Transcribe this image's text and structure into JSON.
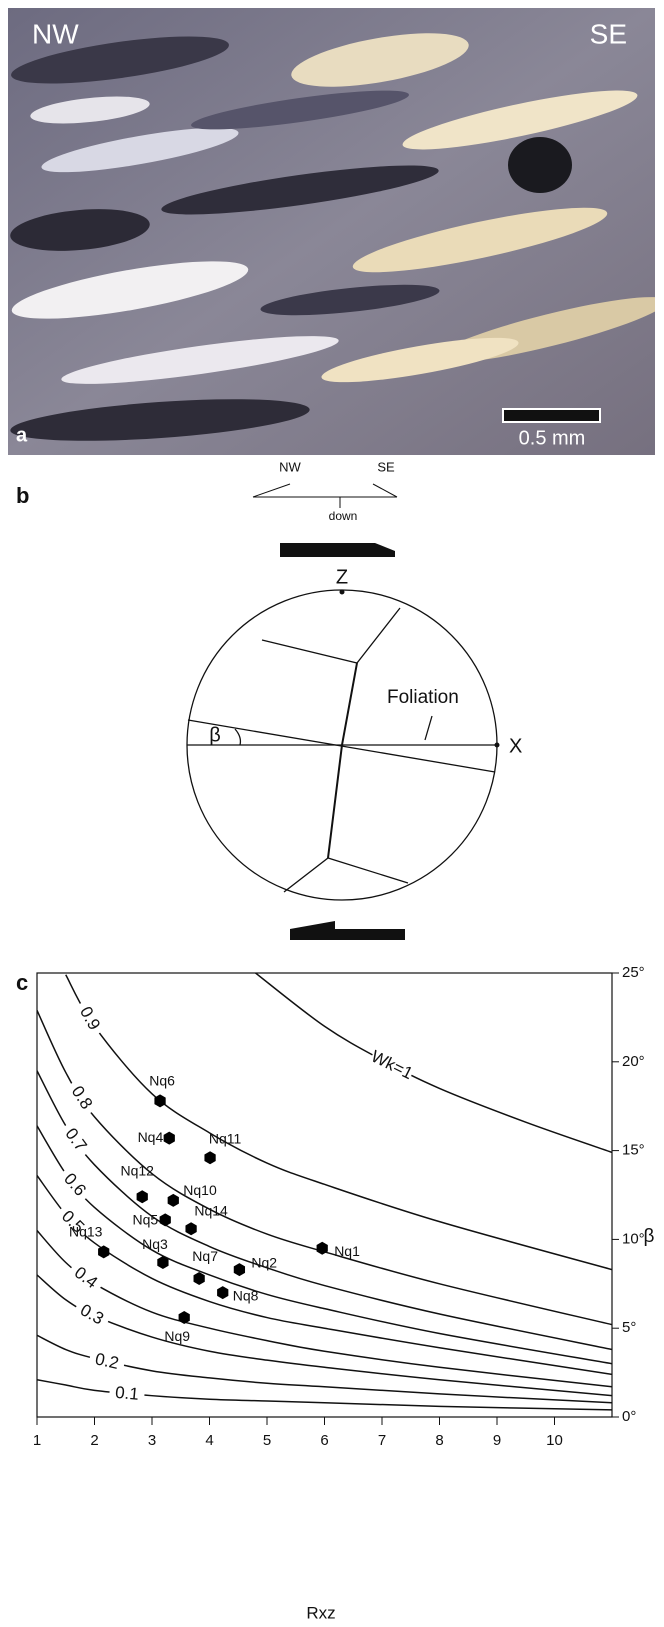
{
  "panel_a": {
    "label": "a",
    "left": "NW",
    "right": "SE",
    "scale_bar": "0.5 mm"
  },
  "panel_b": {
    "label": "b",
    "left": "NW",
    "right": "SE",
    "down": "down",
    "z": "Z",
    "x": "X",
    "foliation": "Foliation",
    "beta": "β"
  },
  "chart_data": {
    "type": "scatter",
    "panel_label": "c",
    "xlabel": "Rxz",
    "ylabel": "β",
    "xlim": [
      1,
      11
    ],
    "ylim": [
      0,
      25
    ],
    "xticks": [
      1,
      2,
      3,
      4,
      5,
      6,
      7,
      8,
      9,
      10
    ],
    "yticks": [
      {
        "value": 0,
        "label": "0°"
      },
      {
        "value": 5,
        "label": "5°"
      },
      {
        "value": 10,
        "label": "10°"
      },
      {
        "value": 15,
        "label": "15°"
      },
      {
        "value": 20,
        "label": "20°"
      },
      {
        "value": 25,
        "label": "25°"
      }
    ],
    "curve_color": "#111111",
    "series": [
      {
        "name": "Wk=1",
        "x": [
          4.8,
          6,
          7,
          8,
          9.5,
          11
        ],
        "values": [
          25,
          22.0,
          20.1,
          18.5,
          16.6,
          14.9
        ]
      },
      {
        "name": "0.9",
        "x": [
          1.5,
          2,
          3,
          4,
          5,
          6,
          8,
          11
        ],
        "values": [
          24.9,
          22.0,
          18.2,
          16.0,
          14.3,
          13.1,
          11.0,
          8.3
        ]
      },
      {
        "name": "0.8",
        "x": [
          1,
          1.5,
          2,
          3,
          4,
          5,
          6,
          8,
          11
        ],
        "values": [
          22.9,
          19.4,
          16.9,
          13.7,
          11.7,
          10.3,
          9.3,
          7.5,
          5.2
        ]
      },
      {
        "name": "0.7",
        "x": [
          1,
          1.5,
          2,
          3,
          4,
          5,
          6,
          8,
          11
        ],
        "values": [
          19.5,
          16.4,
          14.2,
          11.3,
          9.6,
          8.4,
          7.4,
          5.8,
          3.8
        ]
      },
      {
        "name": "0.6",
        "x": [
          1,
          1.5,
          2,
          3,
          4,
          5,
          6,
          8,
          11
        ],
        "values": [
          16.4,
          13.7,
          11.8,
          9.4,
          8.0,
          6.9,
          6.1,
          4.7,
          3.0
        ]
      },
      {
        "name": "0.5",
        "x": [
          1,
          1.5,
          2,
          3,
          4,
          5,
          6,
          8,
          11
        ],
        "values": [
          13.6,
          11.4,
          9.8,
          7.8,
          6.5,
          5.6,
          5.0,
          3.9,
          2.4
        ]
      },
      {
        "name": "0.4",
        "x": [
          1,
          1.5,
          2,
          3,
          4,
          5,
          6,
          8,
          11
        ],
        "values": [
          10.5,
          8.7,
          7.5,
          5.9,
          5.0,
          4.3,
          3.7,
          2.8,
          1.7
        ]
      },
      {
        "name": "0.3",
        "x": [
          1,
          1.5,
          2,
          3,
          4,
          5,
          6,
          8,
          11
        ],
        "values": [
          8.0,
          6.6,
          5.7,
          4.5,
          3.7,
          3.2,
          2.8,
          2.1,
          1.2
        ]
      },
      {
        "name": "0.2",
        "x": [
          1,
          1.5,
          2,
          3,
          4,
          5,
          6,
          8,
          11
        ],
        "values": [
          4.6,
          3.8,
          3.3,
          2.6,
          2.2,
          1.9,
          1.7,
          1.3,
          0.8
        ]
      },
      {
        "name": "0.1",
        "x": [
          1,
          1.5,
          2,
          3,
          4,
          5,
          6,
          8,
          11
        ],
        "values": [
          2.1,
          1.8,
          1.5,
          1.2,
          1.0,
          0.9,
          0.8,
          0.6,
          0.4
        ]
      }
    ],
    "points": {
      "color": "#000000",
      "labels": [
        "Nq1",
        "Nq2",
        "Nq3",
        "Nq4",
        "Nq5",
        "Nq6",
        "Nq7",
        "Nq8",
        "Nq9",
        "Nq10",
        "Nq11",
        "Nq12",
        "Nq13",
        "Nq14"
      ],
      "x": [
        5.96,
        4.52,
        3.19,
        3.3,
        3.23,
        3.14,
        3.82,
        4.23,
        3.56,
        3.37,
        4.01,
        2.83,
        2.16,
        3.68
      ],
      "values": [
        9.5,
        8.3,
        8.7,
        15.7,
        11.1,
        17.8,
        7.8,
        7.0,
        5.6,
        12.2,
        14.6,
        12.4,
        9.3,
        10.6
      ]
    }
  }
}
